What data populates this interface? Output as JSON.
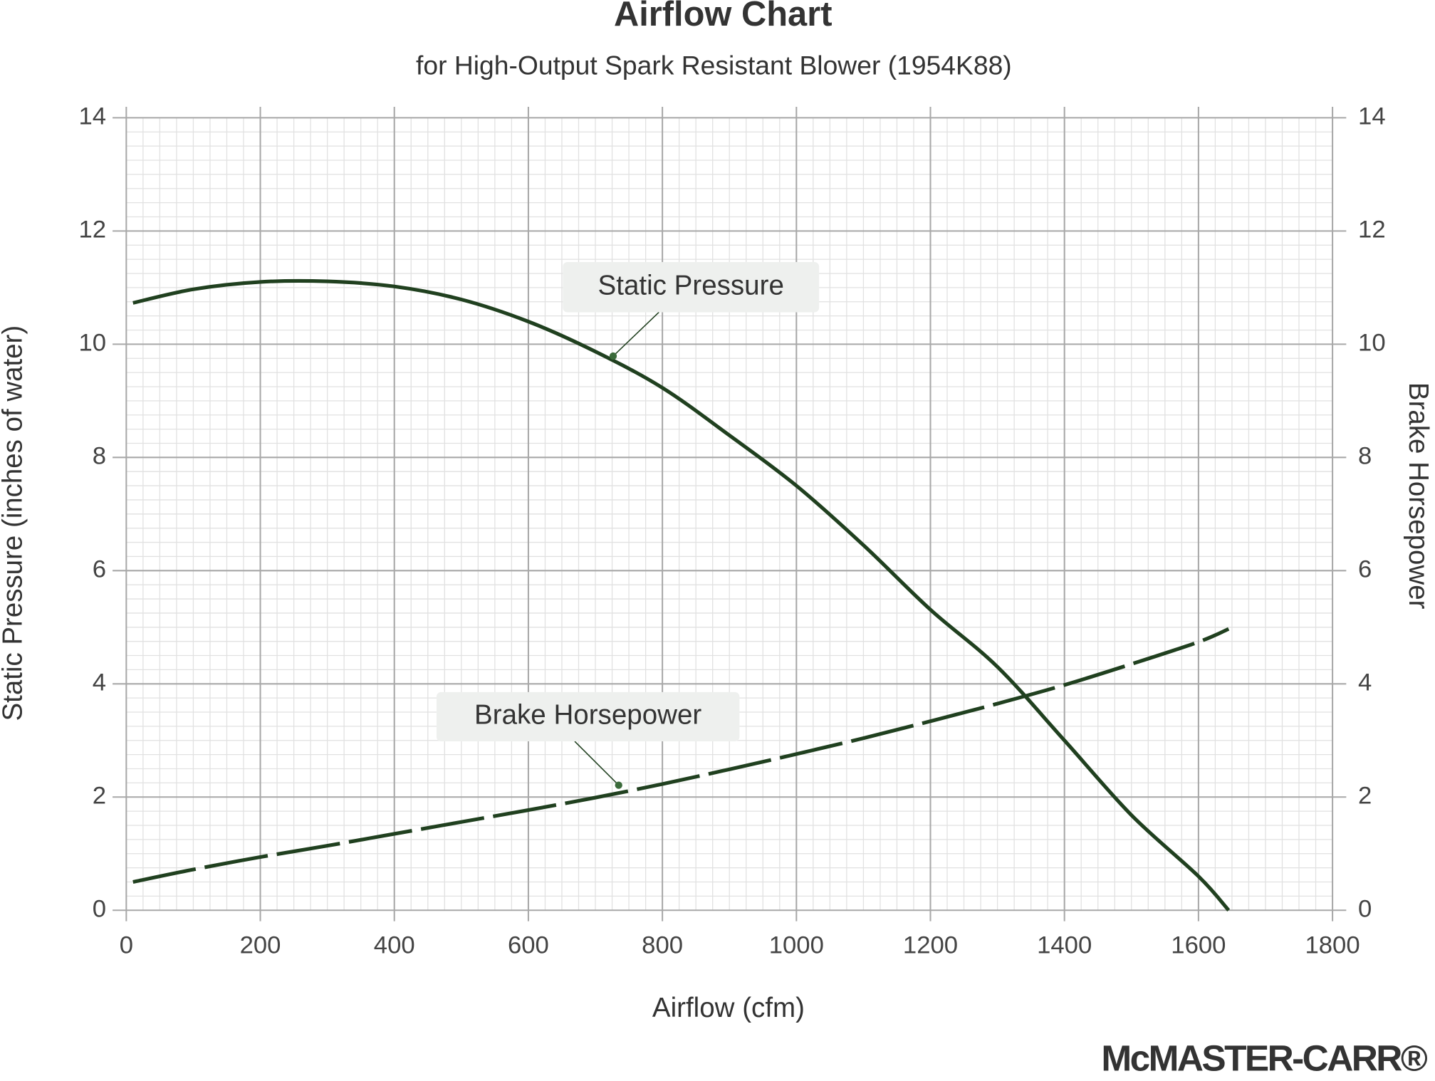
{
  "chart_data": {
    "type": "line",
    "title": "Airflow Chart",
    "subtitle": "for High-Output Spark Resistant Blower (1954K88)",
    "x_label": "Airflow (cfm)",
    "y_label": "Static Pressure (inches of water)",
    "y2_label": "Brake Horsepower",
    "x": [
      10,
      100,
      200,
      300,
      400,
      500,
      600,
      700,
      800,
      900,
      1000,
      1100,
      1200,
      1300,
      1400,
      1500,
      1600,
      1645
    ],
    "series": [
      {
        "name": "Static Pressure",
        "color": "#20401f",
        "style": "solid",
        "values": [
          10.73,
          10.97,
          11.1,
          11.11,
          11.02,
          10.79,
          10.4,
          9.87,
          9.23,
          8.39,
          7.5,
          6.45,
          5.31,
          4.3,
          3.0,
          1.68,
          0.6,
          0
        ]
      },
      {
        "name": "Brake Horsepower",
        "color": "#20401f",
        "style": "dashed",
        "axis": "y2",
        "values": [
          0.5,
          0.72,
          0.94,
          1.14,
          1.35,
          1.56,
          1.77,
          1.99,
          2.23,
          2.49,
          2.76,
          3.04,
          3.34,
          3.65,
          3.98,
          4.35,
          4.74,
          4.97
        ]
      }
    ],
    "xlim": [
      0,
      1800
    ],
    "xticks": [
      0,
      200,
      400,
      600,
      800,
      1000,
      1200,
      1400,
      1600,
      1800
    ],
    "ylim": [
      0,
      14
    ],
    "yticks": [
      0,
      2,
      4,
      6,
      8,
      10,
      12,
      14
    ],
    "y2lim": [
      0,
      14
    ],
    "y2ticks": [
      0,
      2,
      4,
      6,
      8,
      10,
      12,
      14
    ],
    "grid": true,
    "logo": "McMASTER-CARR®"
  }
}
